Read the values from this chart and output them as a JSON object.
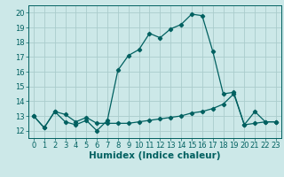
{
  "xlabel": "Humidex (Indice chaleur)",
  "xlim": [
    -0.5,
    23.5
  ],
  "ylim": [
    11.5,
    20.5
  ],
  "yticks": [
    12,
    13,
    14,
    15,
    16,
    17,
    18,
    19,
    20
  ],
  "xticks": [
    0,
    1,
    2,
    3,
    4,
    5,
    6,
    7,
    8,
    9,
    10,
    11,
    12,
    13,
    14,
    15,
    16,
    17,
    18,
    19,
    20,
    21,
    22,
    23
  ],
  "line1_x": [
    0,
    1,
    2,
    3,
    4,
    5,
    6,
    7,
    8,
    9,
    10,
    11,
    12,
    13,
    14,
    15,
    16,
    17,
    18,
    19,
    20,
    21,
    22,
    23
  ],
  "line1_y": [
    13.0,
    12.2,
    13.3,
    12.6,
    12.4,
    12.7,
    12.0,
    12.7,
    16.1,
    17.1,
    17.5,
    18.6,
    18.3,
    18.9,
    19.2,
    19.9,
    19.8,
    17.4,
    14.5,
    14.6,
    12.4,
    13.3,
    12.6,
    12.6
  ],
  "line2_x": [
    0,
    1,
    2,
    3,
    4,
    5,
    6,
    7,
    8,
    9,
    10,
    11,
    12,
    13,
    14,
    15,
    16,
    17,
    18,
    19,
    20,
    21,
    22,
    23
  ],
  "line2_y": [
    13.0,
    12.2,
    13.3,
    13.1,
    12.6,
    12.9,
    12.5,
    12.5,
    12.5,
    12.5,
    12.6,
    12.7,
    12.8,
    12.9,
    13.0,
    13.2,
    13.3,
    13.5,
    13.8,
    14.5,
    12.4,
    12.5,
    12.6,
    12.6
  ],
  "line_color": "#006060",
  "bg_color": "#cce8e8",
  "grid_color": "#aacccc",
  "tick_fontsize": 6,
  "xlabel_fontsize": 7.5
}
